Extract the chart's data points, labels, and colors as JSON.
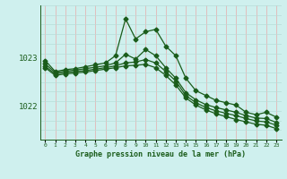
{
  "xlabel": "Graphe pression niveau de la mer (hPa)",
  "bg_color": "#cff0ee",
  "grid_color_v": "#e8aaaa",
  "grid_color_h": "#b8ddd8",
  "line_color": "#1a5c1a",
  "text_color": "#1a5c1a",
  "marker": "D",
  "markersize": 2.5,
  "linewidth": 0.9,
  "xlim": [
    -0.5,
    23.5
  ],
  "ylim": [
    1021.3,
    1024.1
  ],
  "yticks": [
    1022,
    1023
  ],
  "xticks": [
    0,
    1,
    2,
    3,
    4,
    5,
    6,
    7,
    8,
    9,
    10,
    11,
    12,
    13,
    14,
    15,
    16,
    17,
    18,
    19,
    20,
    21,
    22,
    23
  ],
  "series": [
    [
      1022.95,
      1022.72,
      1022.76,
      1022.78,
      1022.82,
      1022.86,
      1022.9,
      1023.05,
      1023.82,
      1023.4,
      1023.55,
      1023.6,
      1023.25,
      1023.05,
      1022.58,
      1022.32,
      1022.22,
      1022.12,
      1022.07,
      1022.02,
      1021.87,
      1021.82,
      1021.87,
      1021.77
    ],
    [
      1022.88,
      1022.7,
      1022.73,
      1022.75,
      1022.78,
      1022.81,
      1022.84,
      1022.9,
      1023.08,
      1022.98,
      1023.18,
      1023.05,
      1022.8,
      1022.58,
      1022.28,
      1022.13,
      1022.03,
      1021.97,
      1021.92,
      1021.87,
      1021.8,
      1021.75,
      1021.74,
      1021.66
    ],
    [
      1022.83,
      1022.67,
      1022.7,
      1022.72,
      1022.74,
      1022.77,
      1022.8,
      1022.84,
      1022.9,
      1022.92,
      1022.97,
      1022.9,
      1022.72,
      1022.52,
      1022.22,
      1022.07,
      1021.97,
      1021.9,
      1021.85,
      1021.8,
      1021.74,
      1021.69,
      1021.67,
      1021.6
    ],
    [
      1022.8,
      1022.64,
      1022.67,
      1022.69,
      1022.71,
      1022.74,
      1022.77,
      1022.8,
      1022.84,
      1022.85,
      1022.87,
      1022.8,
      1022.64,
      1022.44,
      1022.17,
      1022.02,
      1021.92,
      1021.84,
      1021.78,
      1021.72,
      1021.67,
      1021.62,
      1021.6,
      1021.53
    ]
  ]
}
